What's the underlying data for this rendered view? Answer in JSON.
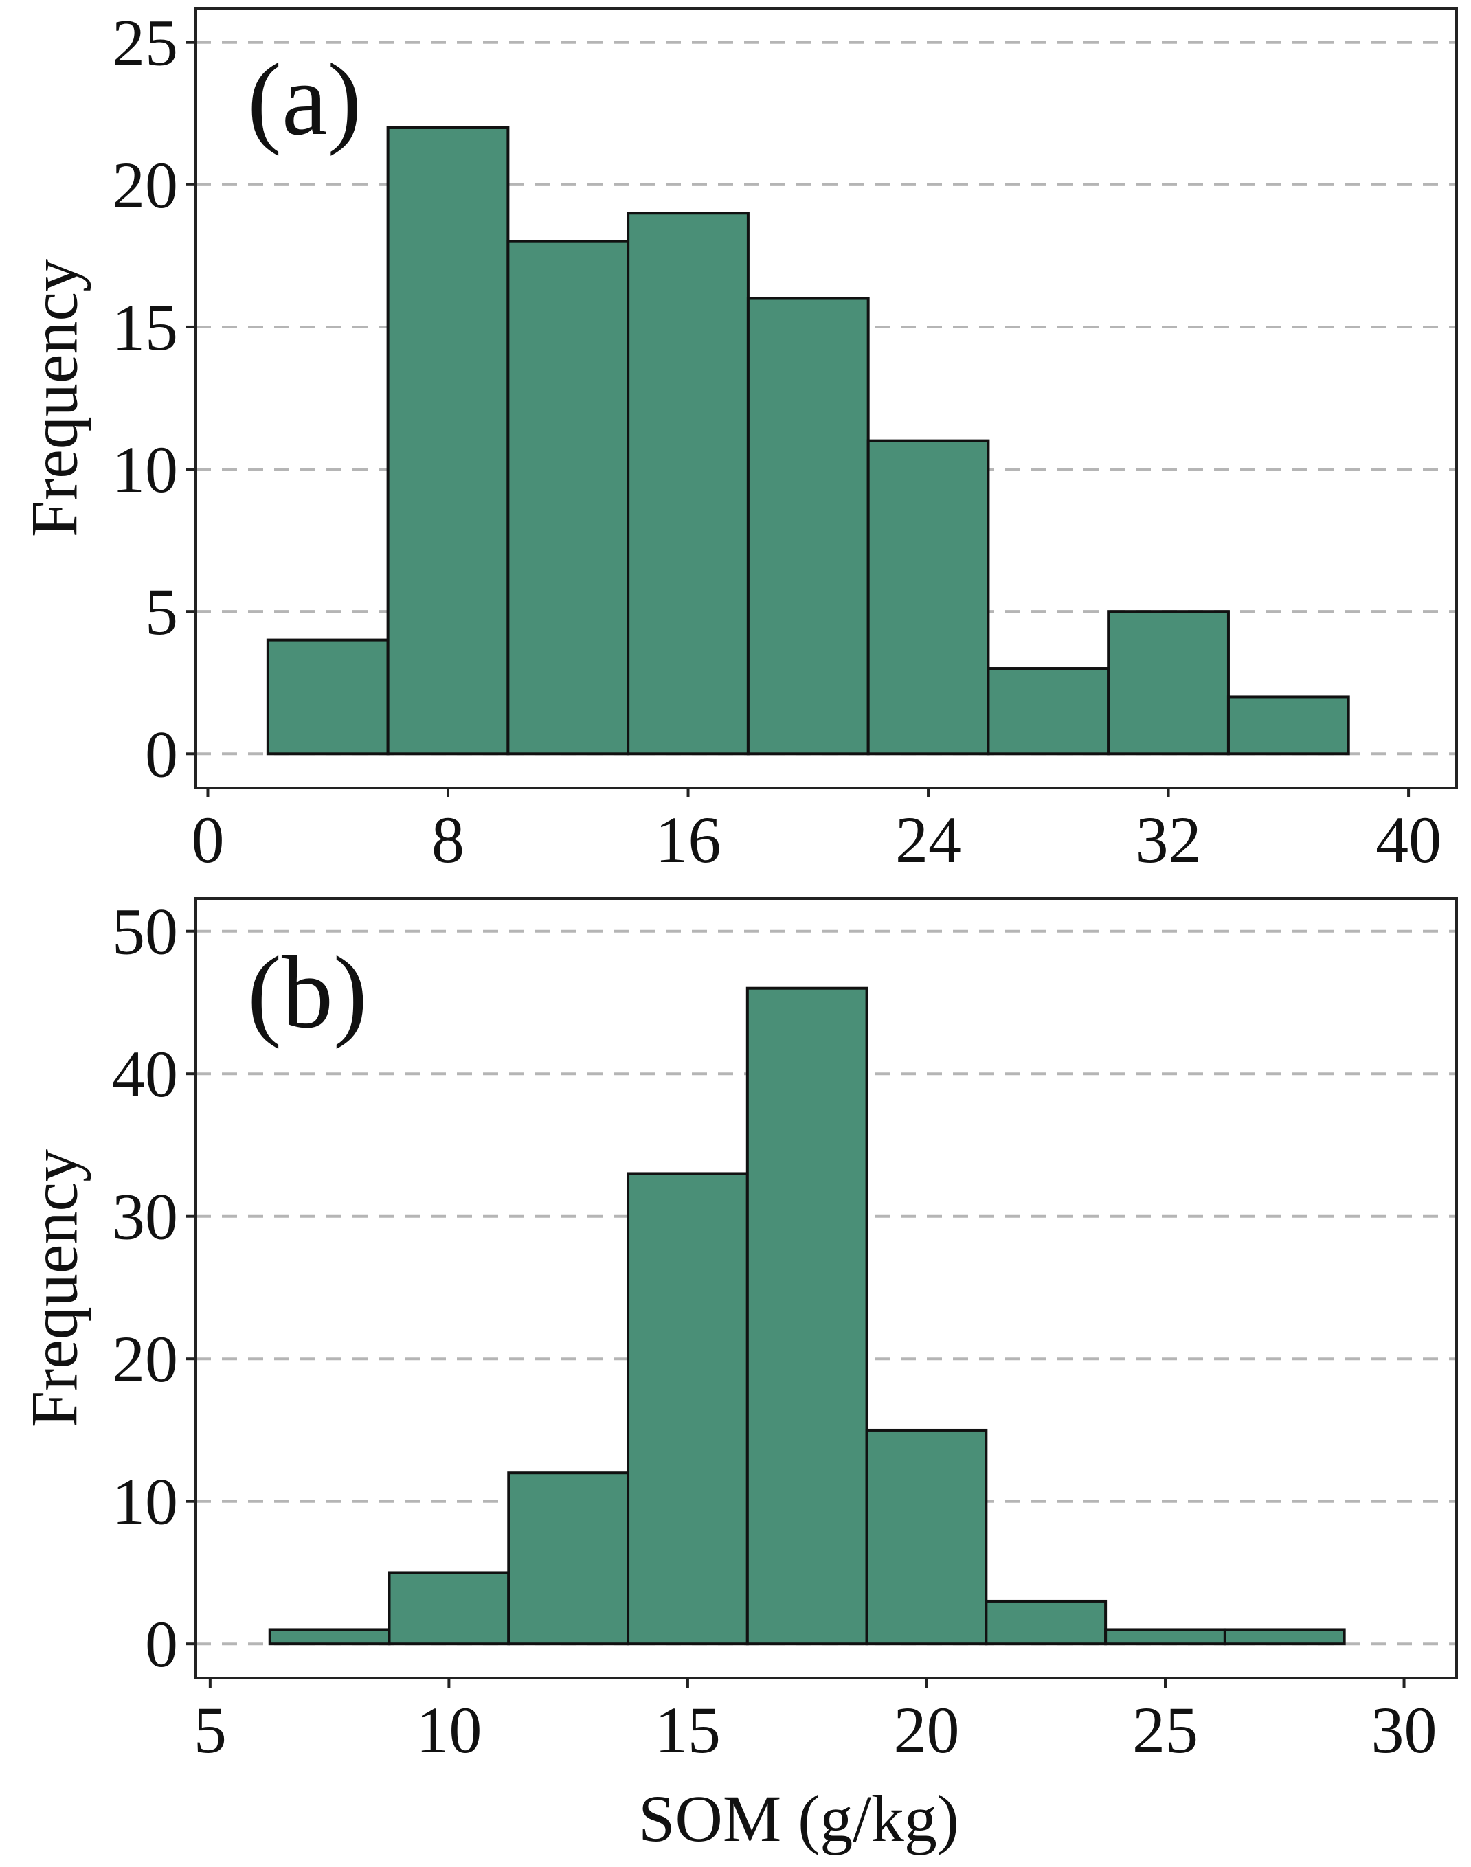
{
  "colors": {
    "bar_fill": "#4a8f77",
    "bar_edge": "#111111",
    "grid": "#b5b5b5"
  },
  "chart_data": [
    {
      "type": "bar",
      "panel_label": "(a)",
      "xlabel": "",
      "ylabel": "Frequency",
      "xlim": [
        -0.4,
        41.6
      ],
      "ylim": [
        -1.2,
        26.2
      ],
      "x_ticks": [
        0,
        8,
        16,
        24,
        32,
        40
      ],
      "y_ticks": [
        0,
        5,
        10,
        15,
        20,
        25
      ],
      "grid": "horizontal dashed",
      "bins": [
        {
          "start": 2,
          "end": 6,
          "count": 4
        },
        {
          "start": 6,
          "end": 10,
          "count": 22
        },
        {
          "start": 10,
          "end": 14,
          "count": 18
        },
        {
          "start": 14,
          "end": 18,
          "count": 19
        },
        {
          "start": 18,
          "end": 22,
          "count": 16
        },
        {
          "start": 22,
          "end": 26,
          "count": 11
        },
        {
          "start": 26,
          "end": 30,
          "count": 3
        },
        {
          "start": 30,
          "end": 34,
          "count": 5
        },
        {
          "start": 34,
          "end": 38,
          "count": 2
        }
      ]
    },
    {
      "type": "bar",
      "panel_label": "(b)",
      "xlabel": "SOM (g/kg)",
      "ylabel": "Frequency",
      "xlim": [
        4.7,
        31.1
      ],
      "ylim": [
        -2.4,
        52.3
      ],
      "x_ticks": [
        5,
        10,
        15,
        20,
        25,
        30
      ],
      "y_ticks": [
        0,
        10,
        20,
        30,
        40,
        50
      ],
      "grid": "horizontal dashed",
      "bins": [
        {
          "start": 6.25,
          "end": 8.75,
          "count": 1
        },
        {
          "start": 8.75,
          "end": 11.25,
          "count": 5
        },
        {
          "start": 11.25,
          "end": 13.75,
          "count": 12
        },
        {
          "start": 13.75,
          "end": 16.25,
          "count": 33
        },
        {
          "start": 16.25,
          "end": 18.75,
          "count": 46
        },
        {
          "start": 18.75,
          "end": 21.25,
          "count": 15
        },
        {
          "start": 21.25,
          "end": 23.75,
          "count": 3
        },
        {
          "start": 23.75,
          "end": 26.25,
          "count": 1
        },
        {
          "start": 26.25,
          "end": 28.75,
          "count": 1
        }
      ]
    }
  ]
}
